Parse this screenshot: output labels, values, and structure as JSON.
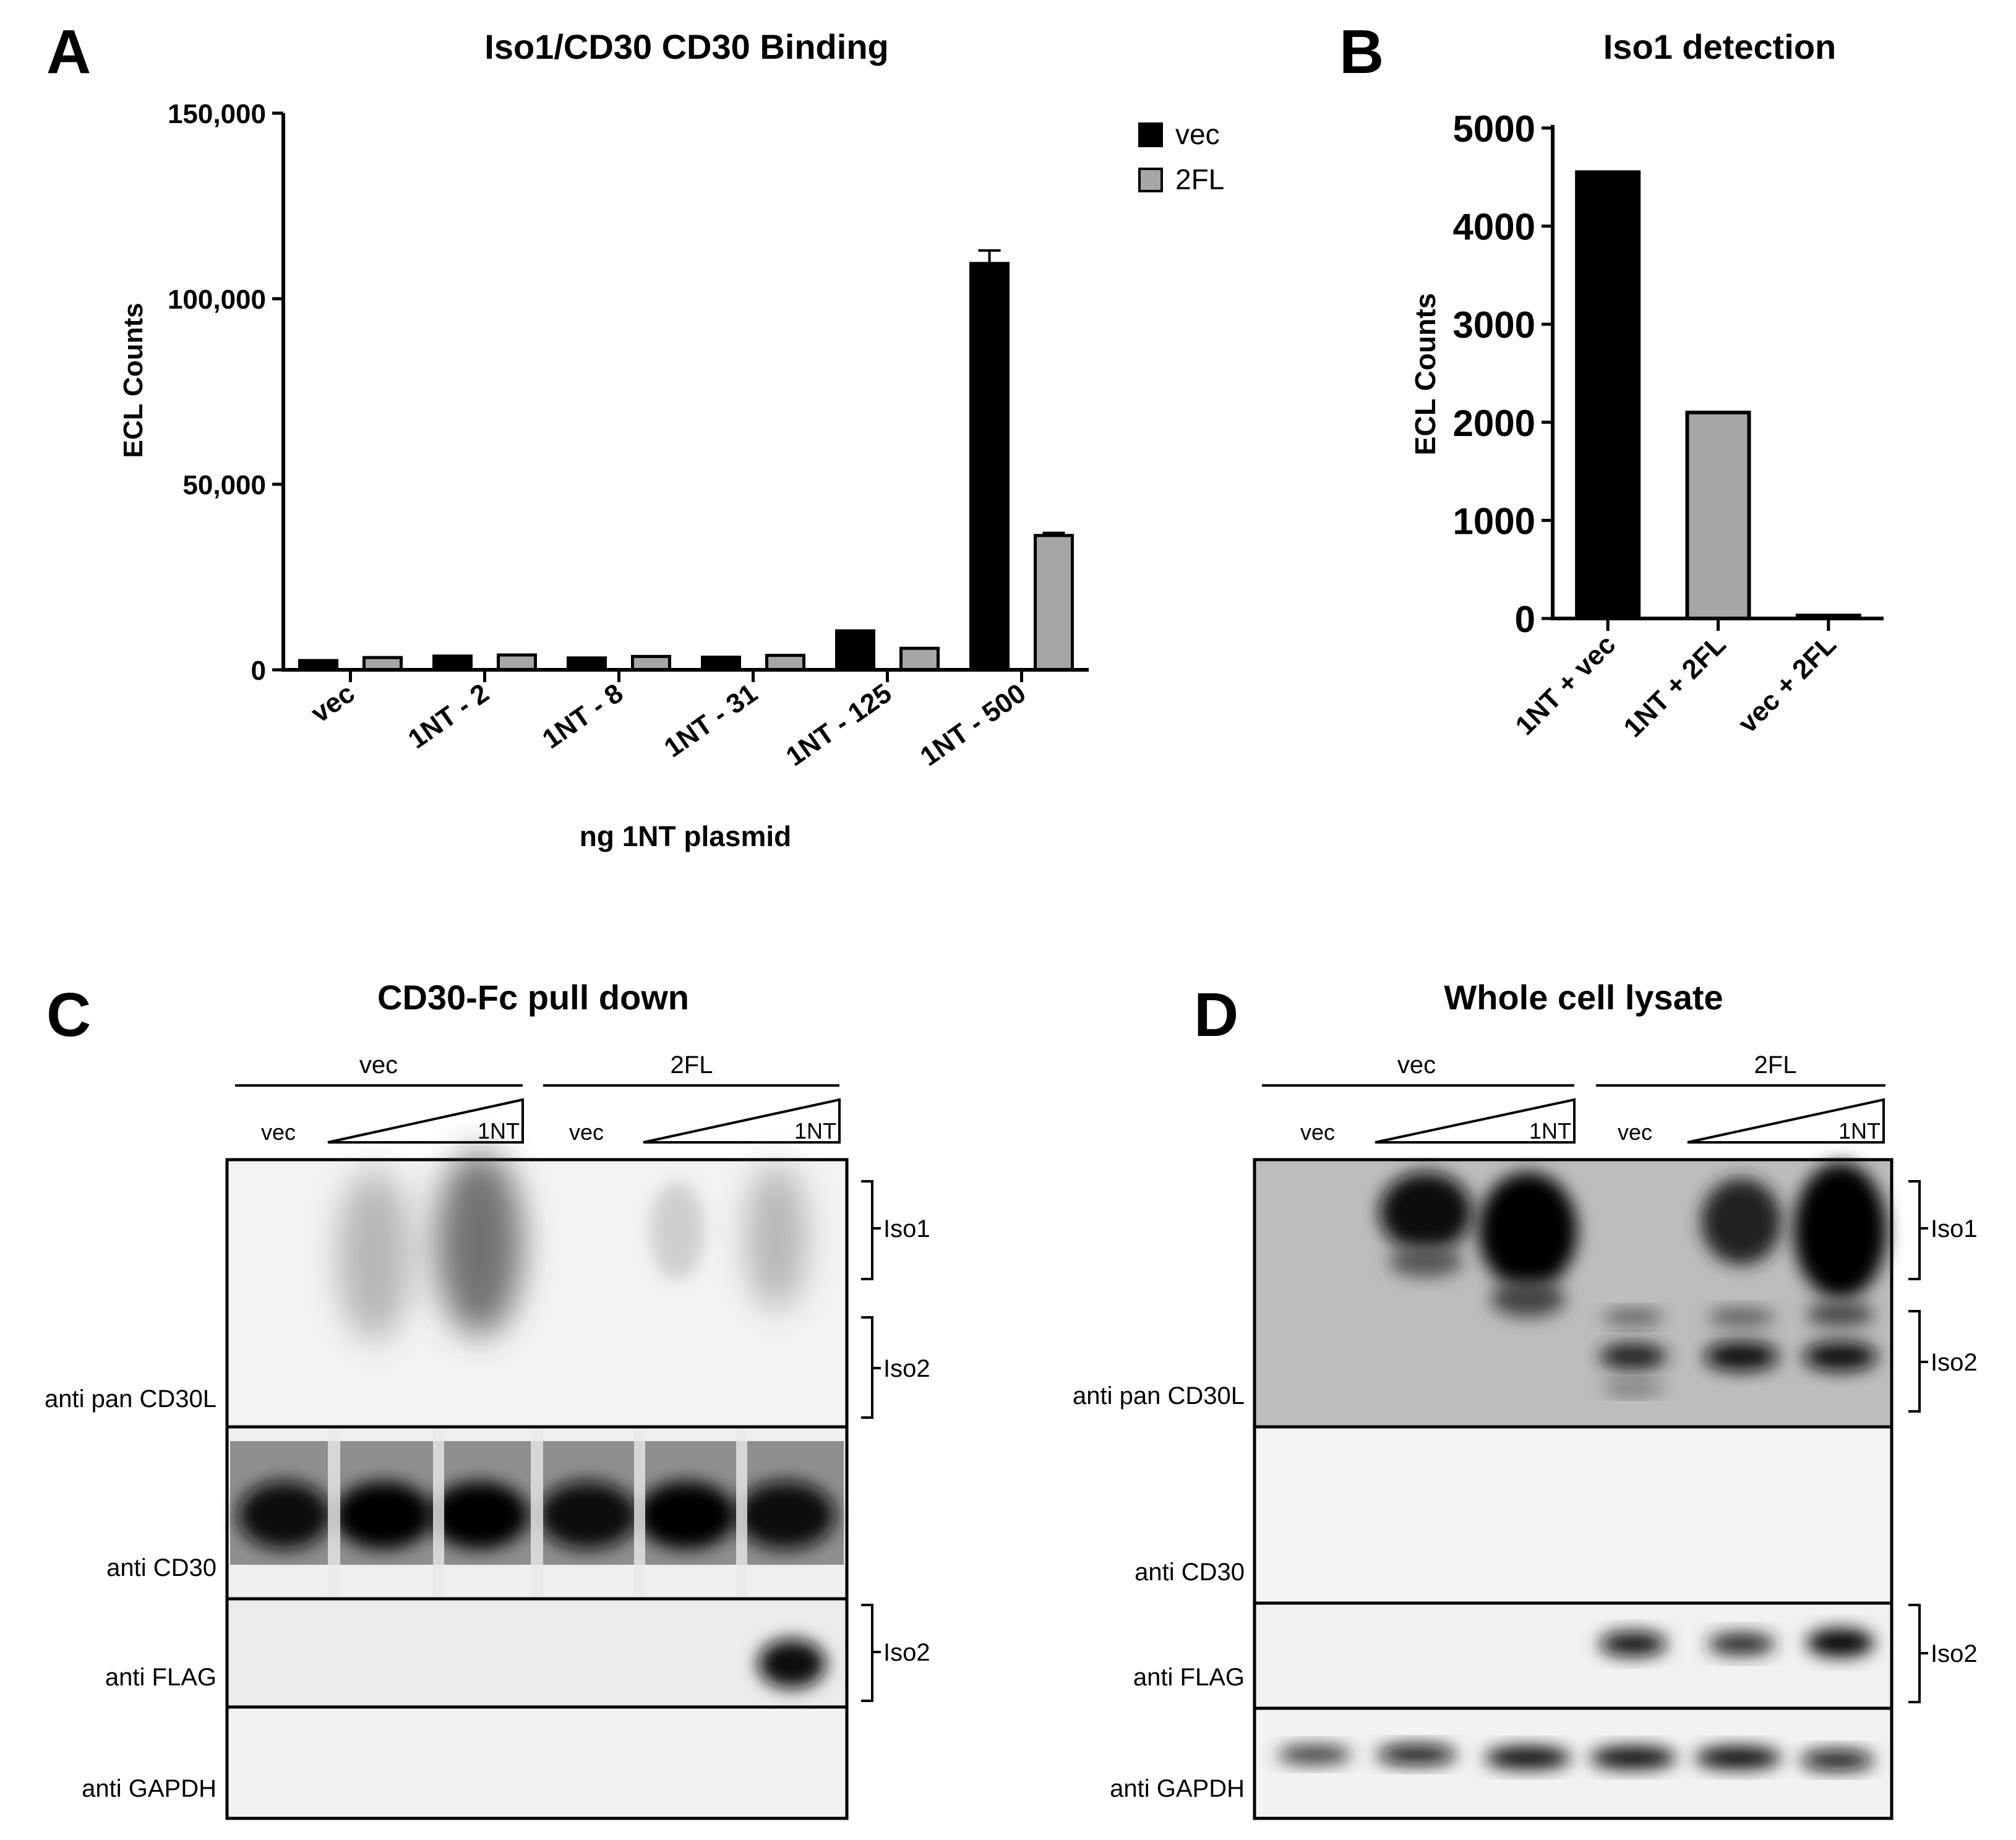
{
  "colors": {
    "vec": "#000000",
    "fl2": "#a6a6a6",
    "axis": "#000000",
    "blot_bg": "#f4f4f4"
  },
  "panels": {
    "a_letter": "A",
    "b_letter": "B",
    "c_letter": "C",
    "d_letter": "D"
  },
  "chart_data": [
    {
      "type": "bar",
      "title": "Iso1/CD30 CD30 Binding",
      "xlabel": "ng 1NT plasmid",
      "ylabel": "ECL Counts",
      "ylim": [
        0,
        150000
      ],
      "yticks": [
        "0",
        "50,000",
        "100,000",
        "150,000"
      ],
      "ytick_values": [
        0,
        50000,
        100000,
        150000
      ],
      "categories": [
        "vec",
        "1NT - 2",
        "1NT - 8",
        "1NT - 31",
        "1NT - 125",
        "1NT - 500"
      ],
      "legend_position": "top-right",
      "series": [
        {
          "name": "vec",
          "color": "#000000",
          "values": [
            2500,
            3700,
            3200,
            3400,
            10500,
            109500
          ],
          "errors": [
            0,
            0,
            0,
            0,
            0,
            3500
          ]
        },
        {
          "name": "2FL",
          "color": "#a6a6a6",
          "values": [
            3300,
            4000,
            3600,
            3900,
            5800,
            36200
          ],
          "errors": [
            0,
            0,
            0,
            0,
            0,
            700
          ]
        }
      ]
    },
    {
      "type": "bar",
      "title": "Iso1 detection",
      "ylabel": "ECL Counts",
      "ylim": [
        0,
        5000
      ],
      "yticks": [
        "0",
        "1000",
        "2000",
        "3000",
        "4000",
        "5000"
      ],
      "ytick_values": [
        0,
        1000,
        2000,
        3000,
        4000,
        5000
      ],
      "categories": [
        "1NT + vec",
        "1NT + 2FL",
        "vec + 2FL"
      ],
      "values": [
        4550,
        2100,
        30
      ],
      "colors": [
        "#000000",
        "#a6a6a6",
        "#000000"
      ]
    }
  ],
  "blot_c": {
    "title": "CD30-Fc pull down",
    "group1": "vec",
    "group2": "2FL",
    "lane_vec": "vec",
    "ramp_label": "1NT",
    "rows": [
      "anti pan CD30L",
      "anti CD30",
      "anti FLAG",
      "anti GAPDH"
    ],
    "brackets": [
      "Iso1",
      "Iso2",
      "Iso2"
    ]
  },
  "blot_d": {
    "title": "Whole cell lysate",
    "group1": "vec",
    "group2": "2FL",
    "lane_vec": "vec",
    "ramp_label": "1NT",
    "rows": [
      "anti pan CD30L",
      "anti CD30",
      "anti FLAG",
      "anti GAPDH"
    ],
    "brackets": [
      "Iso1",
      "Iso2",
      "Iso2"
    ]
  }
}
